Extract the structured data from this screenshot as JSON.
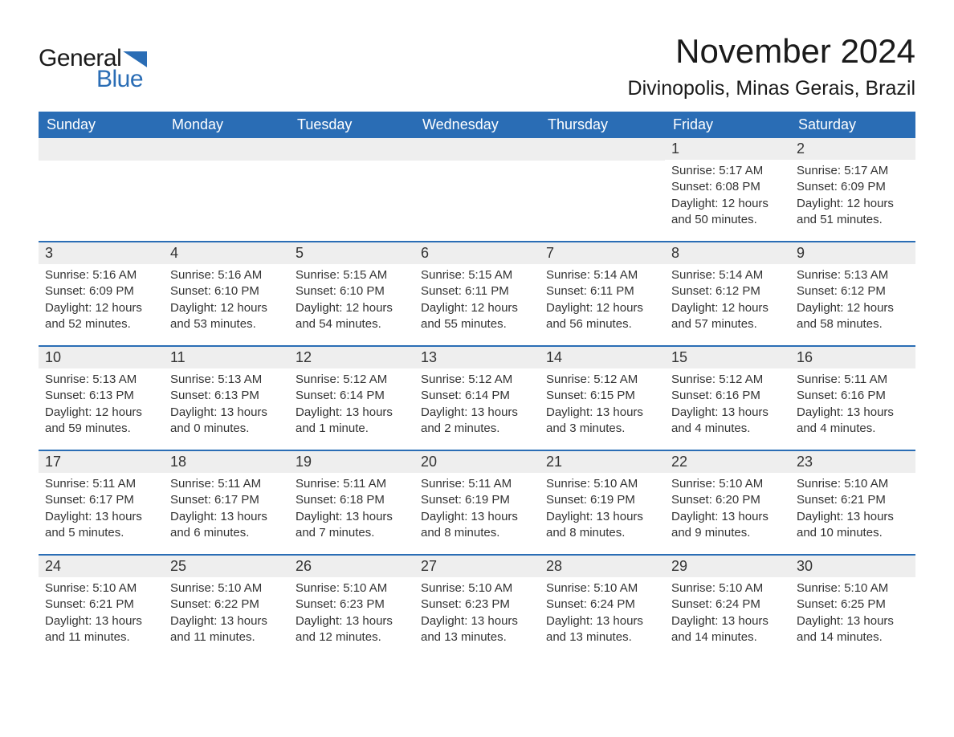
{
  "logo": {
    "general": "General",
    "blue": "Blue"
  },
  "header": {
    "month_title": "November 2024",
    "location": "Divinopolis, Minas Gerais, Brazil"
  },
  "colors": {
    "brand_blue": "#2a6db5",
    "header_bg": "#2a6db5",
    "header_text": "#ffffff",
    "daynum_bg": "#eeeeee",
    "body_text": "#333333",
    "page_bg": "#ffffff"
  },
  "day_labels": [
    "Sunday",
    "Monday",
    "Tuesday",
    "Wednesday",
    "Thursday",
    "Friday",
    "Saturday"
  ],
  "weeks": [
    [
      null,
      null,
      null,
      null,
      null,
      {
        "n": "1",
        "sr": "Sunrise: 5:17 AM",
        "ss": "Sunset: 6:08 PM",
        "dl": "Daylight: 12 hours and 50 minutes."
      },
      {
        "n": "2",
        "sr": "Sunrise: 5:17 AM",
        "ss": "Sunset: 6:09 PM",
        "dl": "Daylight: 12 hours and 51 minutes."
      }
    ],
    [
      {
        "n": "3",
        "sr": "Sunrise: 5:16 AM",
        "ss": "Sunset: 6:09 PM",
        "dl": "Daylight: 12 hours and 52 minutes."
      },
      {
        "n": "4",
        "sr": "Sunrise: 5:16 AM",
        "ss": "Sunset: 6:10 PM",
        "dl": "Daylight: 12 hours and 53 minutes."
      },
      {
        "n": "5",
        "sr": "Sunrise: 5:15 AM",
        "ss": "Sunset: 6:10 PM",
        "dl": "Daylight: 12 hours and 54 minutes."
      },
      {
        "n": "6",
        "sr": "Sunrise: 5:15 AM",
        "ss": "Sunset: 6:11 PM",
        "dl": "Daylight: 12 hours and 55 minutes."
      },
      {
        "n": "7",
        "sr": "Sunrise: 5:14 AM",
        "ss": "Sunset: 6:11 PM",
        "dl": "Daylight: 12 hours and 56 minutes."
      },
      {
        "n": "8",
        "sr": "Sunrise: 5:14 AM",
        "ss": "Sunset: 6:12 PM",
        "dl": "Daylight: 12 hours and 57 minutes."
      },
      {
        "n": "9",
        "sr": "Sunrise: 5:13 AM",
        "ss": "Sunset: 6:12 PM",
        "dl": "Daylight: 12 hours and 58 minutes."
      }
    ],
    [
      {
        "n": "10",
        "sr": "Sunrise: 5:13 AM",
        "ss": "Sunset: 6:13 PM",
        "dl": "Daylight: 12 hours and 59 minutes."
      },
      {
        "n": "11",
        "sr": "Sunrise: 5:13 AM",
        "ss": "Sunset: 6:13 PM",
        "dl": "Daylight: 13 hours and 0 minutes."
      },
      {
        "n": "12",
        "sr": "Sunrise: 5:12 AM",
        "ss": "Sunset: 6:14 PM",
        "dl": "Daylight: 13 hours and 1 minute."
      },
      {
        "n": "13",
        "sr": "Sunrise: 5:12 AM",
        "ss": "Sunset: 6:14 PM",
        "dl": "Daylight: 13 hours and 2 minutes."
      },
      {
        "n": "14",
        "sr": "Sunrise: 5:12 AM",
        "ss": "Sunset: 6:15 PM",
        "dl": "Daylight: 13 hours and 3 minutes."
      },
      {
        "n": "15",
        "sr": "Sunrise: 5:12 AM",
        "ss": "Sunset: 6:16 PM",
        "dl": "Daylight: 13 hours and 4 minutes."
      },
      {
        "n": "16",
        "sr": "Sunrise: 5:11 AM",
        "ss": "Sunset: 6:16 PM",
        "dl": "Daylight: 13 hours and 4 minutes."
      }
    ],
    [
      {
        "n": "17",
        "sr": "Sunrise: 5:11 AM",
        "ss": "Sunset: 6:17 PM",
        "dl": "Daylight: 13 hours and 5 minutes."
      },
      {
        "n": "18",
        "sr": "Sunrise: 5:11 AM",
        "ss": "Sunset: 6:17 PM",
        "dl": "Daylight: 13 hours and 6 minutes."
      },
      {
        "n": "19",
        "sr": "Sunrise: 5:11 AM",
        "ss": "Sunset: 6:18 PM",
        "dl": "Daylight: 13 hours and 7 minutes."
      },
      {
        "n": "20",
        "sr": "Sunrise: 5:11 AM",
        "ss": "Sunset: 6:19 PM",
        "dl": "Daylight: 13 hours and 8 minutes."
      },
      {
        "n": "21",
        "sr": "Sunrise: 5:10 AM",
        "ss": "Sunset: 6:19 PM",
        "dl": "Daylight: 13 hours and 8 minutes."
      },
      {
        "n": "22",
        "sr": "Sunrise: 5:10 AM",
        "ss": "Sunset: 6:20 PM",
        "dl": "Daylight: 13 hours and 9 minutes."
      },
      {
        "n": "23",
        "sr": "Sunrise: 5:10 AM",
        "ss": "Sunset: 6:21 PM",
        "dl": "Daylight: 13 hours and 10 minutes."
      }
    ],
    [
      {
        "n": "24",
        "sr": "Sunrise: 5:10 AM",
        "ss": "Sunset: 6:21 PM",
        "dl": "Daylight: 13 hours and 11 minutes."
      },
      {
        "n": "25",
        "sr": "Sunrise: 5:10 AM",
        "ss": "Sunset: 6:22 PM",
        "dl": "Daylight: 13 hours and 11 minutes."
      },
      {
        "n": "26",
        "sr": "Sunrise: 5:10 AM",
        "ss": "Sunset: 6:23 PM",
        "dl": "Daylight: 13 hours and 12 minutes."
      },
      {
        "n": "27",
        "sr": "Sunrise: 5:10 AM",
        "ss": "Sunset: 6:23 PM",
        "dl": "Daylight: 13 hours and 13 minutes."
      },
      {
        "n": "28",
        "sr": "Sunrise: 5:10 AM",
        "ss": "Sunset: 6:24 PM",
        "dl": "Daylight: 13 hours and 13 minutes."
      },
      {
        "n": "29",
        "sr": "Sunrise: 5:10 AM",
        "ss": "Sunset: 6:24 PM",
        "dl": "Daylight: 13 hours and 14 minutes."
      },
      {
        "n": "30",
        "sr": "Sunrise: 5:10 AM",
        "ss": "Sunset: 6:25 PM",
        "dl": "Daylight: 13 hours and 14 minutes."
      }
    ]
  ]
}
